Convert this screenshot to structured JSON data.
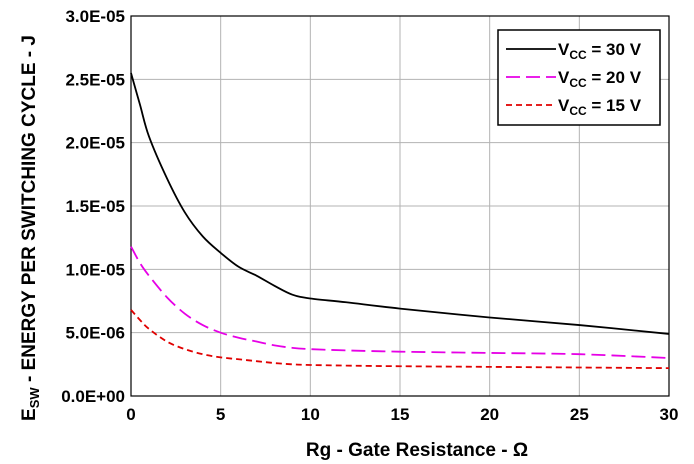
{
  "chart_data": {
    "type": "line",
    "xlabel": "Rg - Gate Resistance - Ω",
    "ylabel_main": "E",
    "ylabel_sub": "SW",
    "ylabel_rest": " - ENERGY PER SWITCHING CYCLE - J",
    "xlim": [
      0,
      30
    ],
    "ylim": [
      0,
      3e-05
    ],
    "x_ticks": [
      0,
      5,
      10,
      15,
      20,
      25,
      30
    ],
    "x_tick_labels": [
      "0",
      "5",
      "10",
      "15",
      "20",
      "25",
      "30"
    ],
    "y_ticks": [
      0,
      5e-06,
      1e-05,
      1.5e-05,
      2e-05,
      2.5e-05,
      3e-05
    ],
    "y_tick_labels": [
      "0.0E+00",
      "5.0E-06",
      "1.0E-05",
      "1.5E-05",
      "2.0E-05",
      "2.5E-05",
      "3.0E-05"
    ],
    "grid": true,
    "legend_position": "top-right",
    "series": [
      {
        "legend_main": "V",
        "legend_sub": "CC",
        "legend_rest": " = 30 V",
        "color": "#000000",
        "dash": "",
        "x": [
          0,
          0.5,
          1,
          2,
          3,
          4,
          5,
          6,
          7,
          8,
          9,
          10,
          12,
          15,
          20,
          25,
          30
        ],
        "y": [
          2.55e-05,
          2.3e-05,
          2.05e-05,
          1.72e-05,
          1.45e-05,
          1.26e-05,
          1.13e-05,
          1.02e-05,
          9.5e-06,
          8.7e-06,
          8e-06,
          7.7e-06,
          7.4e-06,
          6.9e-06,
          6.2e-06,
          5.6e-06,
          4.9e-06
        ]
      },
      {
        "legend_main": "V",
        "legend_sub": "CC",
        "legend_rest": " = 20 V",
        "color": "#e600e6",
        "dash": "14,6",
        "x": [
          0,
          0.5,
          1,
          2,
          3,
          4,
          5,
          6,
          7,
          8,
          9,
          10,
          12,
          15,
          20,
          25,
          30
        ],
        "y": [
          1.18e-05,
          1.05e-05,
          9.5e-06,
          7.8e-06,
          6.5e-06,
          5.6e-06,
          5e-06,
          4.6e-06,
          4.3e-06,
          4e-06,
          3.8e-06,
          3.7e-06,
          3.6e-06,
          3.5e-06,
          3.4e-06,
          3.3e-06,
          3e-06
        ]
      },
      {
        "legend_main": "V",
        "legend_sub": "CC",
        "legend_rest": " = 15 V",
        "color": "#e00000",
        "dash": "6,4",
        "x": [
          0,
          0.5,
          1,
          2,
          3,
          4,
          5,
          6,
          7,
          8,
          9,
          10,
          12,
          15,
          20,
          25,
          30
        ],
        "y": [
          6.8e-06,
          6e-06,
          5.3e-06,
          4.3e-06,
          3.7e-06,
          3.3e-06,
          3.05e-06,
          2.9e-06,
          2.75e-06,
          2.6e-06,
          2.5e-06,
          2.45e-06,
          2.4e-06,
          2.35e-06,
          2.3e-06,
          2.25e-06,
          2.2e-06
        ]
      }
    ]
  }
}
